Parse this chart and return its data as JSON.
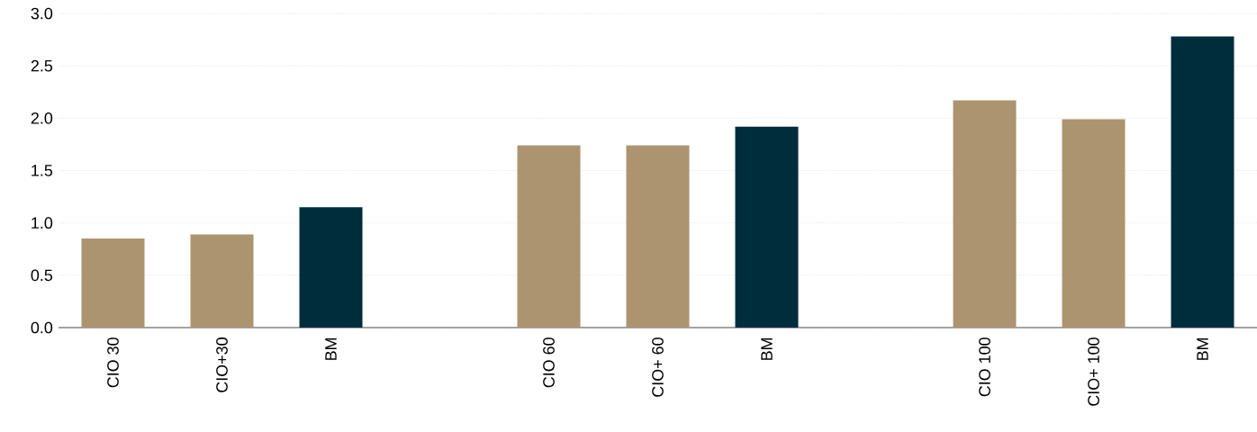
{
  "chart_data": {
    "type": "bar",
    "categories": [
      "CIO 30",
      "CIO+30",
      "BM",
      null,
      "CIO 60",
      "CIO+ 60",
      "BM",
      null,
      "CIO 100",
      "CIO+ 100",
      "BM"
    ],
    "values": [
      0.85,
      0.89,
      1.15,
      null,
      1.74,
      1.74,
      1.92,
      null,
      2.17,
      1.99,
      2.78
    ],
    "colors": [
      "#ad9471",
      "#ad9471",
      "#002d3c",
      null,
      "#ad9471",
      "#ad9471",
      "#002d3c",
      null,
      "#ad9471",
      "#ad9471",
      "#002d3c"
    ],
    "ylim": [
      0,
      3.0
    ],
    "yticks": [
      {
        "value": 0,
        "label": "0.0"
      },
      {
        "value": 0.5,
        "label": "0.5"
      },
      {
        "value": 1,
        "label": "1.0"
      },
      {
        "value": 1.5,
        "label": "1.5"
      },
      {
        "value": 2,
        "label": "2.0"
      },
      {
        "value": 2.5,
        "label": "2.5"
      },
      {
        "value": 3,
        "label": "3.0"
      }
    ],
    "grid": "y"
  }
}
